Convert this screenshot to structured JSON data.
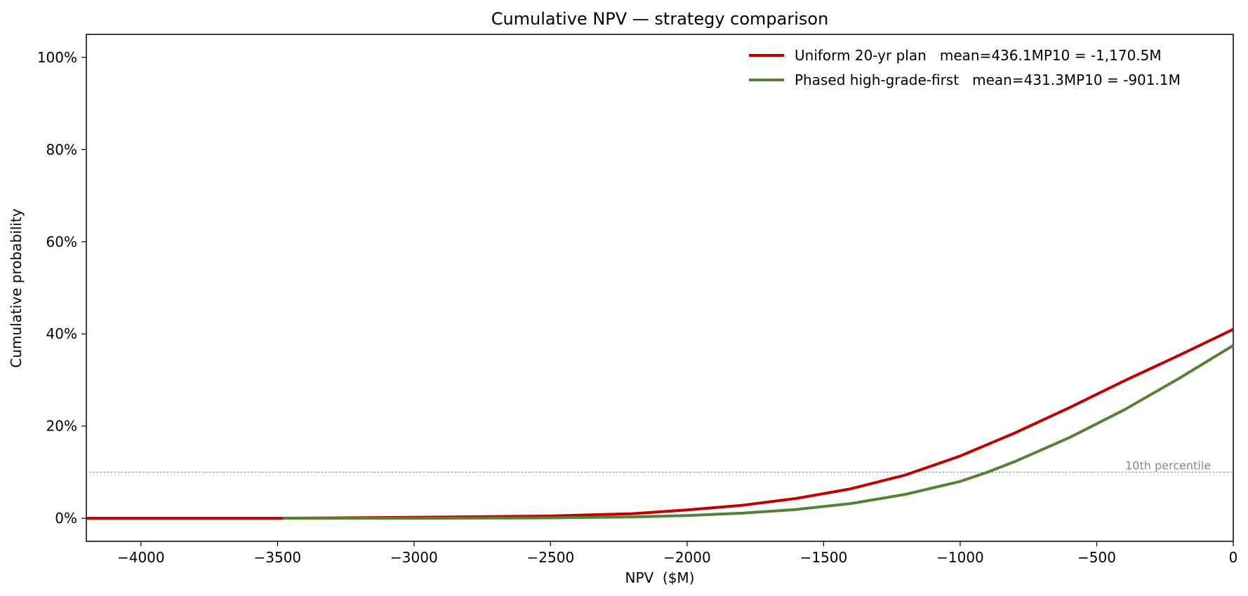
{
  "chart_data": {
    "type": "line",
    "title": "Cumulative NPV — strategy comparison",
    "xlabel": "NPV  ($M)",
    "ylabel": "Cumulative probability",
    "xlim": [
      -4200,
      0
    ],
    "ylim": [
      -0.05,
      1.05
    ],
    "x_ticks": [
      -4000,
      -3500,
      -3000,
      -2500,
      -2000,
      -1500,
      -1000,
      -500,
      0
    ],
    "x_tick_labels": [
      "−4000",
      "−3500",
      "−3000",
      "−2500",
      "−2000",
      "−1500",
      "−1000",
      "−500",
      "0"
    ],
    "y_ticks": [
      0,
      0.2,
      0.4,
      0.6,
      0.8,
      1.0
    ],
    "y_tick_labels": [
      "0%",
      "20%",
      "40%",
      "60%",
      "80%",
      "100%"
    ],
    "grid": false,
    "legend_position": "top-right",
    "reference_lines": [
      {
        "y": 0.1,
        "label": "10th percentile",
        "style": "dotted",
        "color": "#888888"
      }
    ],
    "series": [
      {
        "name": "Uniform 20-yr plan   mean=436.1MP10 = -1,170.5M",
        "color": "#c00000",
        "points": [
          [
            -4200,
            0
          ],
          [
            -3500,
            0.0
          ],
          [
            -3000,
            0.002
          ],
          [
            -2500,
            0.005
          ],
          [
            -2200,
            0.01
          ],
          [
            -2000,
            0.018
          ],
          [
            -1800,
            0.028
          ],
          [
            -1600,
            0.043
          ],
          [
            -1400,
            0.064
          ],
          [
            -1200,
            0.094
          ],
          [
            -1000,
            0.135
          ],
          [
            -800,
            0.185
          ],
          [
            -600,
            0.24
          ],
          [
            -400,
            0.298
          ],
          [
            -200,
            0.353
          ],
          [
            0,
            0.41
          ]
        ]
      },
      {
        "name": "Phased high-grade-first   mean=431.3MP10 = -901.1M",
        "color": "#548235",
        "points": [
          [
            -3480,
            0
          ],
          [
            -3000,
            0.0
          ],
          [
            -2500,
            0.001
          ],
          [
            -2200,
            0.003
          ],
          [
            -2000,
            0.006
          ],
          [
            -1800,
            0.011
          ],
          [
            -1600,
            0.019
          ],
          [
            -1400,
            0.032
          ],
          [
            -1200,
            0.052
          ],
          [
            -1000,
            0.08
          ],
          [
            -900,
            0.1
          ],
          [
            -800,
            0.123
          ],
          [
            -600,
            0.175
          ],
          [
            -400,
            0.235
          ],
          [
            -200,
            0.303
          ],
          [
            0,
            0.375
          ]
        ]
      }
    ]
  }
}
